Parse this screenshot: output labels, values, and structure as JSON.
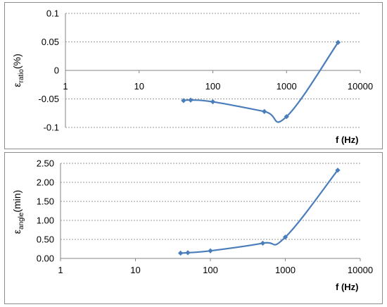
{
  "chart_data": [
    {
      "type": "line",
      "xscale": "log",
      "xlim": [
        1,
        10000
      ],
      "ylim": [
        -0.1,
        0.1
      ],
      "ystep": 0.05,
      "xticks": [
        "1",
        "10",
        "100",
        "1000",
        "10000"
      ],
      "yticks": [
        "-0.1",
        "-0.05",
        "0",
        "0.05",
        "0.1"
      ],
      "xlabel": "f (Hz)",
      "ylabel_symbol": "ε",
      "ylabel_sub": "ratio",
      "ylabel_suffix": "(%)",
      "grid": true,
      "color": "#4a7ebb",
      "series": [
        {
          "x": [
            40,
            50,
            100,
            500,
            1000,
            5000
          ],
          "y": [
            -0.053,
            -0.052,
            -0.055,
            -0.072,
            -0.081,
            0.049
          ]
        }
      ]
    },
    {
      "type": "line",
      "xscale": "log",
      "xlim": [
        1,
        10000
      ],
      "ylim": [
        0,
        2.5
      ],
      "ystep": 0.5,
      "xticks": [
        "1",
        "10",
        "100",
        "1000",
        "10000"
      ],
      "yticks": [
        "0.00",
        "0.50",
        "1.00",
        "1.50",
        "2.00",
        "2.50"
      ],
      "xlabel": "f (Hz)",
      "ylabel_symbol": "ε",
      "ylabel_sub": "angle",
      "ylabel_suffix": "(min)",
      "grid": true,
      "color": "#4a7ebb",
      "series": [
        {
          "x": [
            40,
            50,
            100,
            500,
            1000,
            5000
          ],
          "y": [
            0.14,
            0.15,
            0.2,
            0.4,
            0.56,
            2.32
          ]
        }
      ]
    }
  ]
}
